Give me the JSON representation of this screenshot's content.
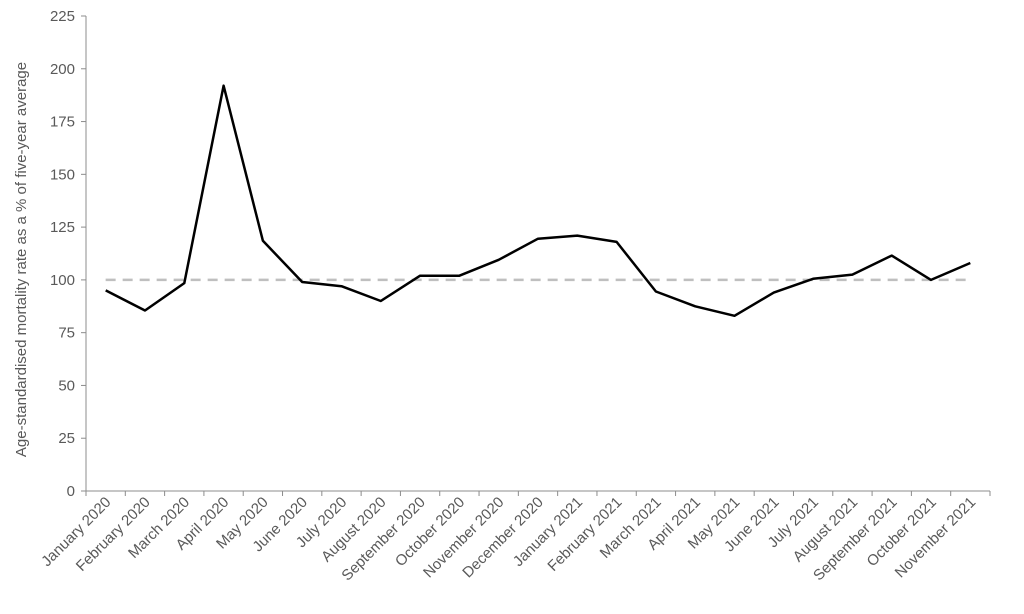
{
  "chart_data": {
    "type": "line",
    "title": "",
    "xlabel": "",
    "ylabel": "Age-standardised mortality rate as a % of five-year average",
    "ylim": [
      0,
      225
    ],
    "yticks": [
      0,
      25,
      50,
      75,
      100,
      125,
      150,
      175,
      200,
      225
    ],
    "categories": [
      "January 2020",
      "February 2020",
      "March 2020",
      "April 2020",
      "May 2020",
      "June 2020",
      "July 2020",
      "August 2020",
      "September 2020",
      "October 2020",
      "November 2020",
      "December 2020",
      "January 2021",
      "February 2021",
      "March 2021",
      "April 2021",
      "May 2021",
      "June 2021",
      "July 2021",
      "August 2021",
      "September 2021",
      "October 2021",
      "November 2021"
    ],
    "series": [
      {
        "values": [
          95,
          85.5,
          98.5,
          192,
          118.5,
          99,
          97,
          90,
          102,
          102,
          109.5,
          119.5,
          121,
          118,
          94.5,
          87.5,
          83,
          94,
          100.5,
          102.5,
          111.5,
          100,
          108
        ],
        "color": "#000000"
      }
    ],
    "reference_line": {
      "value": 100,
      "color": "#bfbfbf",
      "style": "dashed"
    },
    "grid": false,
    "legend": "none"
  }
}
